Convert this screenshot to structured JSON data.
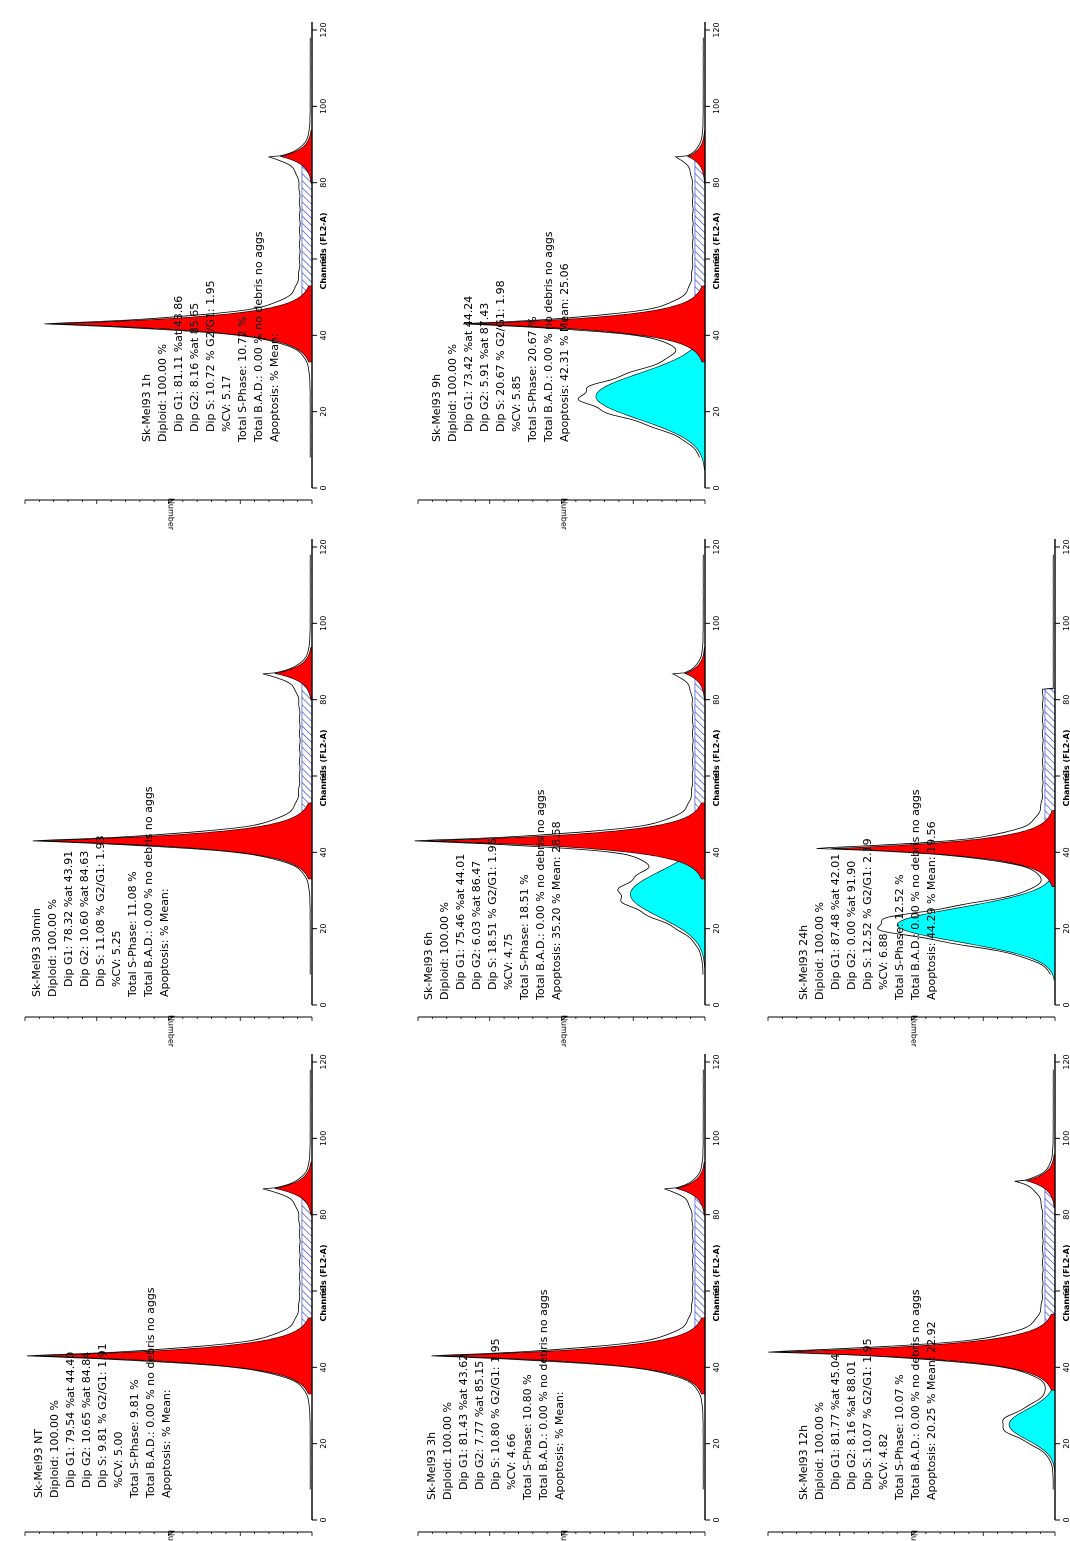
{
  "axis": {
    "xlim": [
      0,
      120
    ],
    "xticks": [
      0,
      20,
      40,
      60,
      80,
      100,
      120
    ],
    "xlabel": "Channels (FL2-A)",
    "ylabel": "Number"
  },
  "panels": [
    {
      "lines": [
        "Sk-Mel93 NT",
        "Diploid: 100.00 %",
        "Dip G1: 79.54 %at 44.40",
        "Dip G2: 10.65 %at 84.84",
        "Dip S: 9.81 %  G2/G1: 1.91",
        "%CV: 5.00",
        "Total S-Phase: 9.81 %",
        "Total B.A.D.: 0.00 %   no debris no aggs",
        "Apoptosis:  %   Mean:"
      ]
    },
    {
      "lines": [
        "Sk-Mel93 30min",
        "Diploid: 100.00 %",
        "Dip G1: 78.32 %at 43.91",
        "Dip G2: 10.60 %at 84.63",
        "Dip S: 11.08 %  G2/G1: 1.93",
        "%CV: 5.25",
        "Total S-Phase: 11.08 %",
        "Total B.A.D.: 0.00 %   no debris no aggs",
        "Apoptosis:  %   Mean:"
      ]
    },
    {
      "lines": [
        "Sk-Mel93 1h",
        "Diploid: 100.00 %",
        "Dip G1: 81.11 %at 43.86",
        "Dip G2: 8.16 %at 85.65",
        "Dip S: 10.72 %  G2/G1: 1.95",
        "%CV: 5.17",
        "Total S-Phase: 10.72 %",
        "Total B.A.D.: 0.00 %   no debris no aggs",
        "Apoptosis:  %   Mean:"
      ]
    },
    {
      "lines": [
        "Sk-Mel93 3h",
        "Diploid: 100.00 %",
        "Dip G1: 81.43 %at 43.62",
        "Dip G2: 7.77 %at 85.15",
        "Dip S: 10.80 %  G2/G1: 1.95",
        "%CV: 4.66",
        "Total S-Phase: 10.80 %",
        "Total B.A.D.: 0.00 %   no debris no aggs",
        "Apoptosis:  %   Mean:"
      ]
    },
    {
      "lines": [
        "Sk-Mel93 6h",
        "Diploid: 100.00 %",
        "Dip G1: 75.46 %at 44.01",
        "Dip G2: 6.03 %at 86.47",
        "Dip S: 18.51 %  G2/G1: 1.96",
        "%CV: 4.75",
        "Total S-Phase: 18.51 %",
        "Total B.A.D.: 0.00 %   no debris no aggs",
        "Apoptosis: 35.20 %   Mean: 28.58"
      ]
    },
    {
      "lines": [
        "Sk-Mel93 9h",
        "Diploid: 100.00 %",
        "Dip G1: 73.42 %at 44.24",
        "Dip G2: 5.91 %at 87.43",
        "Dip S: 20.67 %  G2/G1: 1.98",
        "%CV: 5.85",
        "Total S-Phase: 20.67 %",
        "Total B.A.D.: 0.00 %   no debris no aggs",
        "Apoptosis: 42.31 %   Mean: 25.06"
      ]
    },
    {
      "lines": [
        "Sk-Mel93 12h",
        "Diploid: 100.00 %",
        "Dip G1: 81.77 %at 45.04",
        "Dip G2: 8.16 %at 88.01",
        "Dip S: 10.07 %  G2/G1: 1.95",
        "%CV: 4.82",
        "Total S-Phase: 10.07 %",
        "Total B.A.D.: 0.00 %   no debris no aggs",
        "Apoptosis: 20.25 %   Mean: 22.92"
      ]
    },
    {
      "lines": [
        "Sk-Mel93 24h",
        "Diploid: 100.00 %",
        "Dip G1: 87.48 %at 42.01",
        "Dip G2: 0.00 %at 91.90",
        "Dip S: 12.52 %  G2/G1: 2.19",
        "%CV: 6.88",
        "Total S-Phase: 12.52 %",
        "Total B.A.D.: 0.00 %   no debris no aggs",
        "Apoptosis: 44.29 %   Mean: 19.56"
      ]
    }
  ]
}
